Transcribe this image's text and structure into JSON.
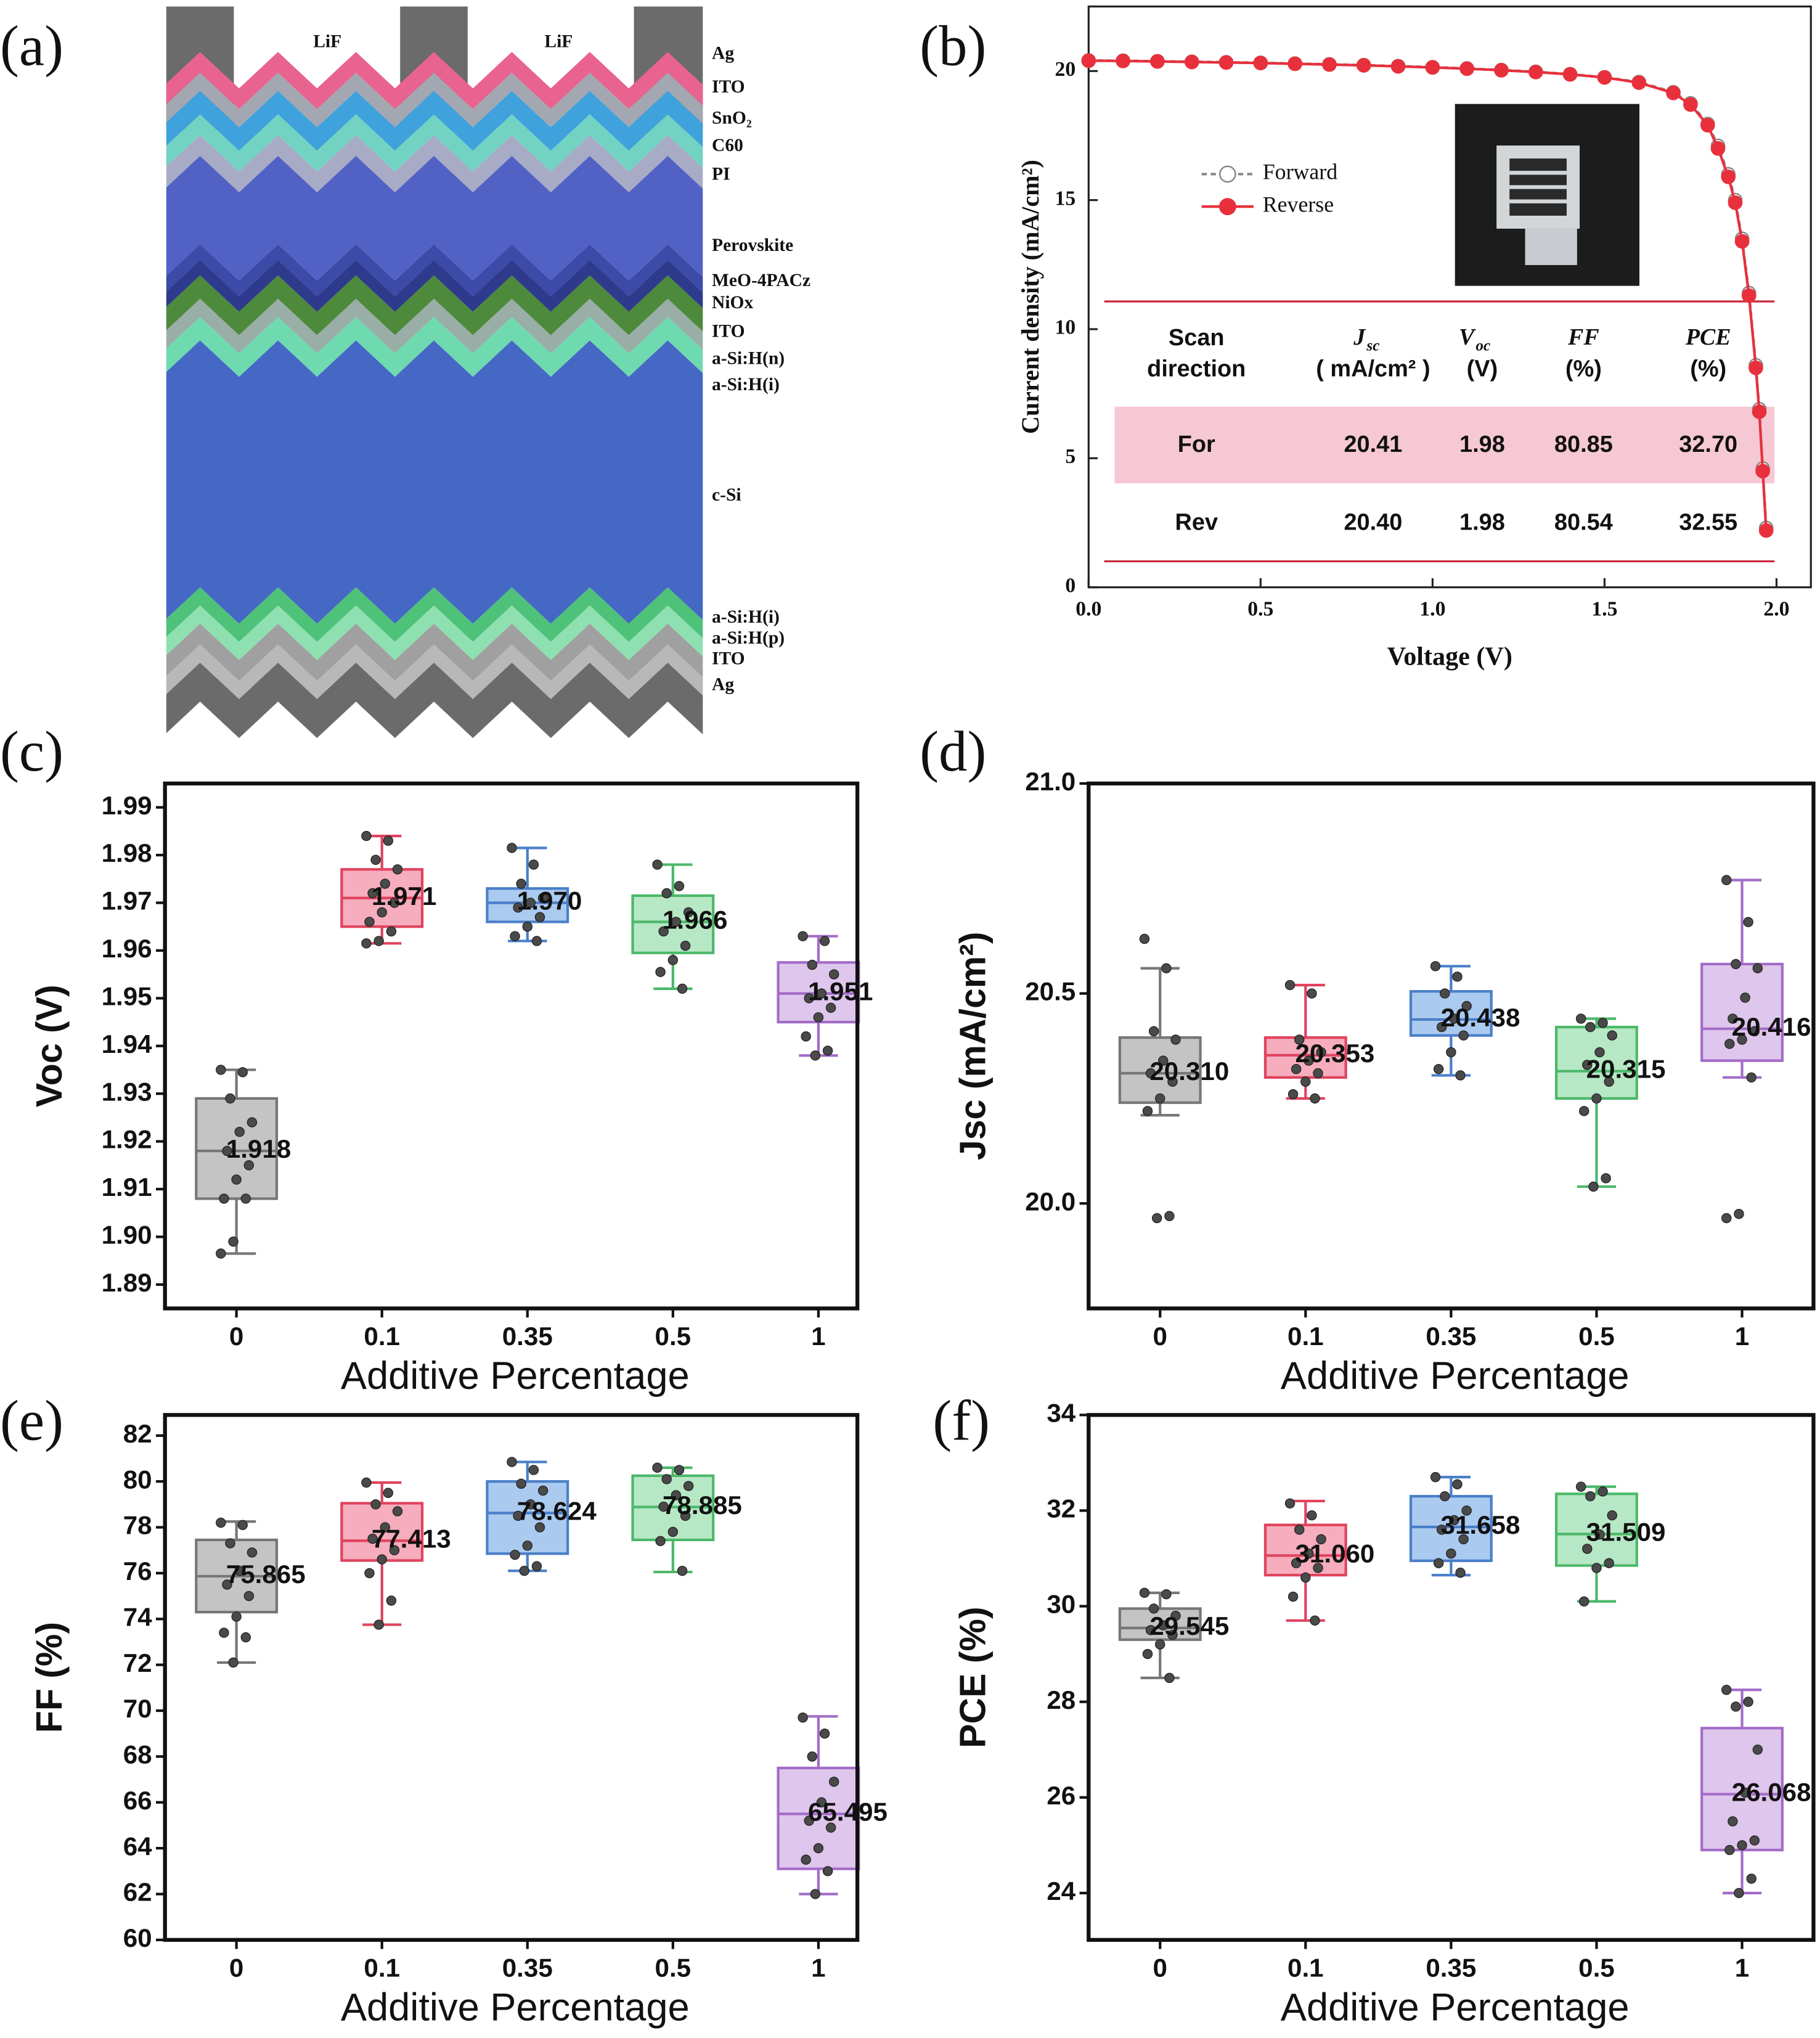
{
  "panel_labels": [
    "(a)",
    "(b)",
    "(c)",
    "(d)",
    "(e)",
    "(f)"
  ],
  "diagram": {
    "top_labels": [
      "LiF",
      "LiF"
    ],
    "layers": [
      {
        "label": "Ag",
        "color": "#6b6b6b"
      },
      {
        "label": "ITO",
        "color": "#e8638f"
      },
      {
        "label": "SnO₂",
        "color": "#a3a7b2"
      },
      {
        "label": "C60",
        "color": "#3fa2dc"
      },
      {
        "label": "PI",
        "color": "#72d3c2"
      },
      {
        "label": "Perovskite",
        "color": "#5262c4"
      },
      {
        "label": "MeO-4PACz",
        "color": "#3c4aa8"
      },
      {
        "label": "NiOx",
        "color": "#2e3b8c"
      },
      {
        "label": "ITO",
        "color": "#4d8a3b"
      },
      {
        "label": "a-Si:H(n)",
        "color": "#9aaea8"
      },
      {
        "label": "a-Si:H(i)",
        "color": "#6fd9b0"
      },
      {
        "label": "c-Si",
        "color": "#4568c4"
      },
      {
        "label": "a-Si:H(i)",
        "color": "#4fc27a"
      },
      {
        "label": "a-Si:H(p)",
        "color": "#8ee0b0"
      },
      {
        "label": "ITO",
        "color": "#a0a0a0"
      },
      {
        "label": "Ag",
        "color": "#6b6b6b"
      }
    ]
  },
  "chart_data": [
    {
      "type": "line",
      "xlabel": "Voltage (V)",
      "ylabel": "Current density (mA/cm²)",
      "xlim": [
        0,
        2.1
      ],
      "ylim": [
        0,
        22.5
      ],
      "xticks": [
        {
          "value": 0,
          "label": "0.0"
        },
        0.5,
        {
          "value": 1,
          "label": "1.0"
        },
        1.5,
        {
          "value": 2,
          "label": "2.0"
        }
      ],
      "yticks": [
        0,
        5,
        10,
        15,
        20
      ],
      "legend": "center left",
      "x": [
        0,
        0.1,
        0.2,
        0.3,
        0.4,
        0.5,
        0.6,
        0.7,
        0.8,
        0.9,
        1,
        1.1,
        1.2,
        1.3,
        1.4,
        1.5,
        1.6,
        1.7,
        1.75,
        1.8,
        1.83,
        1.86,
        1.88,
        1.9,
        1.92,
        1.94,
        1.95,
        1.96,
        1.97
      ],
      "series": [
        {
          "name": "Forward",
          "color": "#888888",
          "marker": "hollow",
          "values": [
            20.41,
            20.4,
            20.38,
            20.36,
            20.34,
            20.32,
            20.29,
            20.26,
            20.23,
            20.19,
            20.15,
            20.1,
            20.04,
            19.97,
            19.88,
            19.76,
            19.57,
            19.18,
            18.75,
            17.95,
            17.1,
            16.0,
            15.0,
            13.5,
            11.4,
            8.6,
            6.9,
            4.6,
            2.3
          ]
        },
        {
          "name": "Reverse",
          "color": "#e8303c",
          "marker": "filled",
          "values": [
            20.4,
            20.39,
            20.37,
            20.35,
            20.33,
            20.31,
            20.28,
            20.25,
            20.22,
            20.18,
            20.14,
            20.09,
            20.03,
            19.96,
            19.87,
            19.75,
            19.55,
            19.15,
            18.7,
            17.9,
            17.0,
            15.9,
            14.9,
            13.4,
            11.3,
            8.5,
            6.8,
            4.5,
            2.2
          ]
        }
      ],
      "table": {
        "header": [
          {
            "lines": [
              "Scan",
              "direction"
            ]
          },
          {
            "symbol": "J",
            "sub": "sc",
            "unit": "( mA/cm² )"
          },
          {
            "symbol": "V",
            "sub": "oc",
            "unit": "(V)"
          },
          {
            "symbol": "FF",
            "unit": "(%)"
          },
          {
            "symbol": "PCE",
            "unit": "(%)"
          }
        ],
        "rows": [
          [
            "For",
            "20.41",
            "1.98",
            "80.85",
            "32.70"
          ],
          [
            "Rev",
            "20.40",
            "1.98",
            "80.54",
            "32.55"
          ]
        ]
      }
    },
    {
      "type": "box",
      "xlabel": "Additive Percentage",
      "ylabel": "Voc (V)",
      "categories": [
        "0",
        "0.1",
        "0.35",
        "0.5",
        "1"
      ],
      "colors": [
        "#777777",
        "#e0435e",
        "#4a7fc9",
        "#4cb86a",
        "#a36cc8"
      ],
      "fills": [
        "#c4c4c4",
        "#f6adbd",
        "#abcaf0",
        "#b7e8c5",
        "#dfc6ec"
      ],
      "ylim": [
        1.885,
        1.995
      ],
      "yticks": [
        1.89,
        {
          "value": 1.9,
          "label": "1.90"
        },
        1.91,
        1.92,
        1.93,
        1.94,
        1.95,
        1.96,
        1.97,
        1.98,
        1.99
      ],
      "values": [
        1.918,
        1.971,
        1.97,
        1.966,
        1.951
      ],
      "value_labels": [
        "1.918",
        "1.971",
        "1.970",
        "1.966",
        "1.951"
      ],
      "boxes": [
        {
          "min": 1.8965,
          "q1": 1.908,
          "q3": 1.929,
          "max": 1.935,
          "points": [
            1.935,
            1.9345,
            1.929,
            1.924,
            1.922,
            1.918,
            1.915,
            1.912,
            1.908,
            1.908,
            1.899,
            1.8965
          ]
        },
        {
          "min": 1.9615,
          "q1": 1.965,
          "q3": 1.977,
          "max": 1.984,
          "points": [
            1.984,
            1.983,
            1.979,
            1.977,
            1.974,
            1.972,
            1.97,
            1.968,
            1.966,
            1.964,
            1.962,
            1.9615
          ]
        },
        {
          "min": 1.962,
          "q1": 1.966,
          "q3": 1.973,
          "max": 1.9815,
          "points": [
            1.9815,
            1.978,
            1.974,
            1.971,
            1.97,
            1.969,
            1.967,
            1.965,
            1.963,
            1.962
          ]
        },
        {
          "min": 1.952,
          "q1": 1.9595,
          "q3": 1.9715,
          "max": 1.978,
          "points": [
            1.978,
            1.9735,
            1.972,
            1.968,
            1.966,
            1.964,
            1.961,
            1.958,
            1.9555,
            1.952
          ]
        },
        {
          "min": 1.938,
          "q1": 1.945,
          "q3": 1.9575,
          "max": 1.963,
          "points": [
            1.963,
            1.962,
            1.957,
            1.955,
            1.951,
            1.95,
            1.948,
            1.946,
            1.942,
            1.939,
            1.938
          ]
        }
      ]
    },
    {
      "type": "box",
      "xlabel": "Additive Percentage",
      "ylabel": "Jsc (mA/cm²)",
      "categories": [
        "0",
        "0.1",
        "0.35",
        "0.5",
        "1"
      ],
      "colors": [
        "#777777",
        "#e0435e",
        "#4a7fc9",
        "#4cb86a",
        "#a36cc8"
      ],
      "fills": [
        "#c4c4c4",
        "#f6adbd",
        "#abcaf0",
        "#b7e8c5",
        "#dfc6ec"
      ],
      "ylim": [
        19.75,
        21.0
      ],
      "yticks": [
        {
          "value": 20,
          "label": "20.0"
        },
        20.5,
        {
          "value": 21,
          "label": "21.0"
        }
      ],
      "values": [
        20.31,
        20.353,
        20.438,
        20.315,
        20.416
      ],
      "value_labels": [
        "20.310",
        "20.353",
        "20.438",
        "20.315",
        "20.416"
      ],
      "boxes": [
        {
          "min": 20.21,
          "q1": 20.24,
          "q3": 20.395,
          "max": 20.56,
          "points": [
            20.63,
            20.56,
            20.41,
            20.39,
            20.34,
            20.31,
            20.29,
            20.25,
            20.22,
            19.97,
            19.965
          ]
        },
        {
          "min": 20.25,
          "q1": 20.3,
          "q3": 20.395,
          "max": 20.52,
          "points": [
            20.52,
            20.5,
            20.39,
            20.36,
            20.34,
            20.32,
            20.31,
            20.29,
            20.26,
            20.25
          ]
        },
        {
          "min": 20.305,
          "q1": 20.4,
          "q3": 20.505,
          "max": 20.565,
          "points": [
            20.565,
            20.54,
            20.5,
            20.47,
            20.44,
            20.42,
            20.4,
            20.36,
            20.32,
            20.305
          ]
        },
        {
          "min": 20.04,
          "q1": 20.25,
          "q3": 20.42,
          "max": 20.44,
          "points": [
            20.44,
            20.43,
            20.42,
            20.4,
            20.36,
            20.33,
            20.29,
            20.25,
            20.22,
            20.06,
            20.04
          ]
        },
        {
          "min": 20.3,
          "q1": 20.34,
          "q3": 20.57,
          "max": 20.77,
          "points": [
            20.77,
            20.67,
            20.57,
            20.56,
            20.49,
            20.44,
            20.41,
            20.39,
            20.38,
            20.3,
            19.975,
            19.965
          ]
        }
      ]
    },
    {
      "type": "box",
      "xlabel": "Additive Percentage",
      "ylabel": "FF (%)",
      "categories": [
        "0",
        "0.1",
        "0.35",
        "0.5",
        "1"
      ],
      "colors": [
        "#777777",
        "#e0435e",
        "#4a7fc9",
        "#4cb86a",
        "#a36cc8"
      ],
      "fills": [
        "#c4c4c4",
        "#f6adbd",
        "#abcaf0",
        "#b7e8c5",
        "#dfc6ec"
      ],
      "ylim": [
        60,
        82.9
      ],
      "yticks": [
        60,
        62,
        64,
        66,
        68,
        70,
        72,
        74,
        76,
        78,
        80,
        82
      ],
      "values": [
        75.865,
        77.413,
        78.624,
        78.885,
        65.495
      ],
      "value_labels": [
        "75.865",
        "77.413",
        "78.624",
        "78.885",
        "65.495"
      ],
      "boxes": [
        {
          "min": 72.1,
          "q1": 74.3,
          "q3": 77.45,
          "max": 78.25,
          "points": [
            78.2,
            78.1,
            77.3,
            76.9,
            76.1,
            75.5,
            75.0,
            74.1,
            73.4,
            73.2,
            72.1
          ]
        },
        {
          "min": 73.75,
          "q1": 76.55,
          "q3": 79.05,
          "max": 79.95,
          "points": [
            79.95,
            79.5,
            79.0,
            78.7,
            78.0,
            77.5,
            77.0,
            76.6,
            76.0,
            74.8,
            73.75
          ]
        },
        {
          "min": 76.1,
          "q1": 76.85,
          "q3": 80.0,
          "max": 80.85,
          "points": [
            80.85,
            80.5,
            79.9,
            79.6,
            79.0,
            78.5,
            78.0,
            77.2,
            76.8,
            76.3,
            76.1
          ]
        },
        {
          "min": 76.05,
          "q1": 77.45,
          "q3": 80.25,
          "max": 80.6,
          "points": [
            80.6,
            80.5,
            80.1,
            79.8,
            79.4,
            78.9,
            78.5,
            77.8,
            77.4,
            76.1
          ]
        },
        {
          "min": 62.0,
          "q1": 63.1,
          "q3": 67.5,
          "max": 69.75,
          "points": [
            69.7,
            69.0,
            68.0,
            66.9,
            66.0,
            65.2,
            64.9,
            64.0,
            63.5,
            63.0,
            62.0
          ]
        }
      ]
    },
    {
      "type": "box",
      "xlabel": "Additive Percentage",
      "ylabel": "PCE (%)",
      "categories": [
        "0",
        "0.1",
        "0.35",
        "0.5",
        "1"
      ],
      "colors": [
        "#777777",
        "#e0435e",
        "#4a7fc9",
        "#4cb86a",
        "#a36cc8"
      ],
      "fills": [
        "#c4c4c4",
        "#f6adbd",
        "#abcaf0",
        "#b7e8c5",
        "#dfc6ec"
      ],
      "ylim": [
        23.02,
        34
      ],
      "yticks": [
        24,
        26,
        28,
        30,
        32,
        34
      ],
      "values": [
        29.545,
        31.06,
        31.658,
        31.509,
        26.068
      ],
      "value_labels": [
        "29.545",
        "31.060",
        "31.658",
        "31.509",
        "26.068"
      ],
      "boxes": [
        {
          "min": 28.5,
          "q1": 29.3,
          "q3": 29.95,
          "max": 30.28,
          "points": [
            30.28,
            30.25,
            29.95,
            29.8,
            29.6,
            29.5,
            29.4,
            29.2,
            29.0,
            28.5
          ]
        },
        {
          "min": 29.7,
          "q1": 30.65,
          "q3": 31.7,
          "max": 32.2,
          "points": [
            32.15,
            31.9,
            31.6,
            31.4,
            31.1,
            30.9,
            30.8,
            30.6,
            30.2,
            29.7
          ]
        },
        {
          "min": 30.65,
          "q1": 30.95,
          "q3": 32.3,
          "max": 32.7,
          "points": [
            32.7,
            32.55,
            32.3,
            32.0,
            31.8,
            31.6,
            31.4,
            31.1,
            30.9,
            30.7
          ]
        },
        {
          "min": 30.1,
          "q1": 30.85,
          "q3": 32.35,
          "max": 32.5,
          "points": [
            32.5,
            32.4,
            32.3,
            31.9,
            31.5,
            31.2,
            30.9,
            30.8,
            30.1
          ]
        },
        {
          "min": 24.0,
          "q1": 24.9,
          "q3": 27.45,
          "max": 28.25,
          "points": [
            28.25,
            28.0,
            27.9,
            27.0,
            26.1,
            25.5,
            25.1,
            25.0,
            24.9,
            24.3,
            24.0
          ]
        }
      ]
    }
  ]
}
